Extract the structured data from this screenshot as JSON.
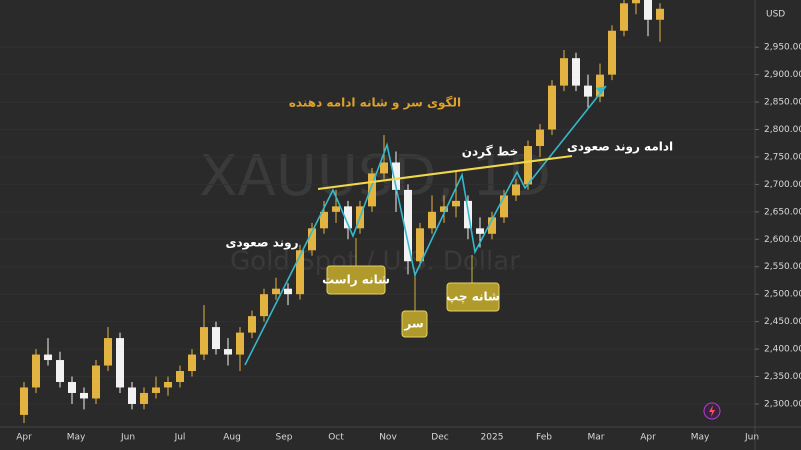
{
  "chart_data": {
    "type": "candlestick",
    "title": "الگوی سر و شانه ادامه دهنده",
    "symbol": "XAUUSD, 1D",
    "symbol_description": "Gold Spot / U.S. Dollar",
    "currency": "USD",
    "annotations": {
      "neckline": "خط گردن",
      "uptrend": "روند صعودی",
      "uptrend_continuation": "ادامه روند صعودی",
      "right_shoulder": "شانه راست",
      "head": "سر",
      "left_shoulder": "شانه چپ"
    },
    "x_labels": [
      "Apr",
      "May",
      "Jun",
      "Jul",
      "Aug",
      "Sep",
      "Oct",
      "Nov",
      "Dec",
      "2025",
      "Feb",
      "Mar",
      "Apr",
      "May",
      "Jun"
    ],
    "up_color": "#e3b341",
    "down_color": "#f2f2f2",
    "ylim": [
      2258,
      3036
    ],
    "yticks": [
      {
        "value": 2300,
        "label": "2,300.000"
      },
      {
        "value": 2350,
        "label": "2,350.000"
      },
      {
        "value": 2400,
        "label": "2,400.000"
      },
      {
        "value": 2450,
        "label": "2,450.000"
      },
      {
        "value": 2500,
        "label": "2,500.000"
      },
      {
        "value": 2550,
        "label": "2,550.000"
      },
      {
        "value": 2600,
        "label": "2,600.000"
      },
      {
        "value": 2650,
        "label": "2,650.000"
      },
      {
        "value": 2700,
        "label": "2,700.000"
      },
      {
        "value": 2750,
        "label": "2,750.000"
      },
      {
        "value": 2800,
        "label": "2,800.000"
      },
      {
        "value": 2850,
        "label": "2,850.000"
      },
      {
        "value": 2900,
        "label": "2,900.000"
      },
      {
        "value": 2950,
        "label": "2,950.000"
      }
    ],
    "ohlc": [
      [
        2280,
        2340,
        2265,
        2330
      ],
      [
        2330,
        2400,
        2320,
        2390
      ],
      [
        2390,
        2420,
        2370,
        2380
      ],
      [
        2380,
        2395,
        2330,
        2340
      ],
      [
        2340,
        2350,
        2300,
        2320
      ],
      [
        2320,
        2330,
        2290,
        2310
      ],
      [
        2310,
        2380,
        2300,
        2370
      ],
      [
        2370,
        2440,
        2360,
        2420
      ],
      [
        2420,
        2430,
        2320,
        2330
      ],
      [
        2330,
        2340,
        2290,
        2300
      ],
      [
        2300,
        2330,
        2290,
        2320
      ],
      [
        2320,
        2350,
        2310,
        2330
      ],
      [
        2330,
        2350,
        2315,
        2340
      ],
      [
        2340,
        2370,
        2330,
        2360
      ],
      [
        2360,
        2400,
        2350,
        2390
      ],
      [
        2390,
        2480,
        2380,
        2440
      ],
      [
        2440,
        2450,
        2390,
        2400
      ],
      [
        2400,
        2420,
        2370,
        2390
      ],
      [
        2390,
        2440,
        2360,
        2430
      ],
      [
        2430,
        2470,
        2420,
        2460
      ],
      [
        2460,
        2510,
        2450,
        2500
      ],
      [
        2500,
        2530,
        2490,
        2510
      ],
      [
        2510,
        2520,
        2480,
        2500
      ],
      [
        2500,
        2590,
        2490,
        2580
      ],
      [
        2580,
        2630,
        2570,
        2620
      ],
      [
        2620,
        2670,
        2610,
        2650
      ],
      [
        2650,
        2690,
        2630,
        2660
      ],
      [
        2660,
        2670,
        2600,
        2620
      ],
      [
        2620,
        2670,
        2610,
        2660
      ],
      [
        2660,
        2730,
        2650,
        2720
      ],
      [
        2720,
        2790,
        2710,
        2740
      ],
      [
        2740,
        2760,
        2650,
        2690
      ],
      [
        2690,
        2700,
        2536,
        2560
      ],
      [
        2560,
        2630,
        2550,
        2620
      ],
      [
        2620,
        2680,
        2610,
        2650
      ],
      [
        2650,
        2680,
        2630,
        2660
      ],
      [
        2660,
        2725,
        2640,
        2670
      ],
      [
        2670,
        2680,
        2600,
        2620
      ],
      [
        2620,
        2640,
        2585,
        2610
      ],
      [
        2610,
        2650,
        2600,
        2640
      ],
      [
        2640,
        2690,
        2630,
        2680
      ],
      [
        2680,
        2710,
        2670,
        2700
      ],
      [
        2700,
        2780,
        2690,
        2770
      ],
      [
        2770,
        2810,
        2750,
        2800
      ],
      [
        2800,
        2890,
        2790,
        2880
      ],
      [
        2880,
        2945,
        2870,
        2930
      ],
      [
        2930,
        2940,
        2870,
        2880
      ],
      [
        2880,
        2900,
        2840,
        2860
      ],
      [
        2860,
        2920,
        2850,
        2900
      ],
      [
        2900,
        2990,
        2890,
        2980
      ],
      [
        2980,
        3040,
        2970,
        3030
      ],
      [
        3030,
        3060,
        3010,
        3040
      ],
      [
        3040,
        3060,
        2970,
        3000
      ],
      [
        3000,
        3030,
        2960,
        3020
      ]
    ]
  }
}
